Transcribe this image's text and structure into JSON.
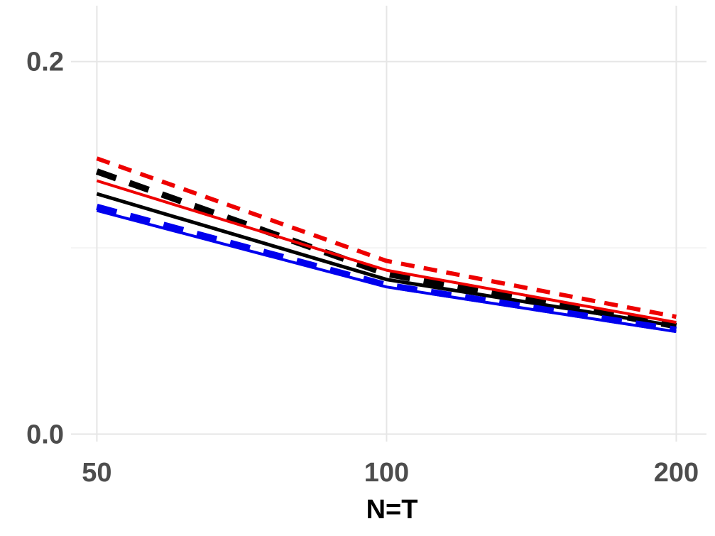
{
  "chart_data": {
    "type": "line",
    "title": "",
    "xlabel": "N=T",
    "ylabel": "",
    "x": [
      50,
      100,
      200
    ],
    "x_scale": "log",
    "xlim": [
      47,
      215
    ],
    "ylim": [
      -0.004,
      0.23
    ],
    "x_ticks": [
      50,
      100,
      200
    ],
    "x_tick_labels": [
      "50",
      "100",
      "200"
    ],
    "y_ticks": [
      0.0,
      0.2
    ],
    "y_tick_labels": [
      "0.0",
      "0.2"
    ],
    "y_minor_ticks": [
      0.1
    ],
    "grid": true,
    "legend": "none",
    "series": [
      {
        "color": "#ee0000",
        "dash": "dashed",
        "width": 6,
        "values": [
          0.148,
          0.093,
          0.063
        ]
      },
      {
        "color": "#000000",
        "dash": "dashed",
        "width": 9,
        "values": [
          0.141,
          0.086,
          0.058
        ]
      },
      {
        "color": "#ee0000",
        "dash": "solid",
        "width": 4,
        "values": [
          0.136,
          0.088,
          0.06
        ]
      },
      {
        "color": "#000000",
        "dash": "solid",
        "width": 5,
        "values": [
          0.129,
          0.083,
          0.058
        ]
      },
      {
        "color": "#0000ee",
        "dash": "dashed",
        "width": 9,
        "values": [
          0.122,
          0.08,
          0.056
        ]
      },
      {
        "color": "#0000ee",
        "dash": "solid",
        "width": 4,
        "values": [
          0.12,
          0.079,
          0.055
        ]
      }
    ]
  }
}
